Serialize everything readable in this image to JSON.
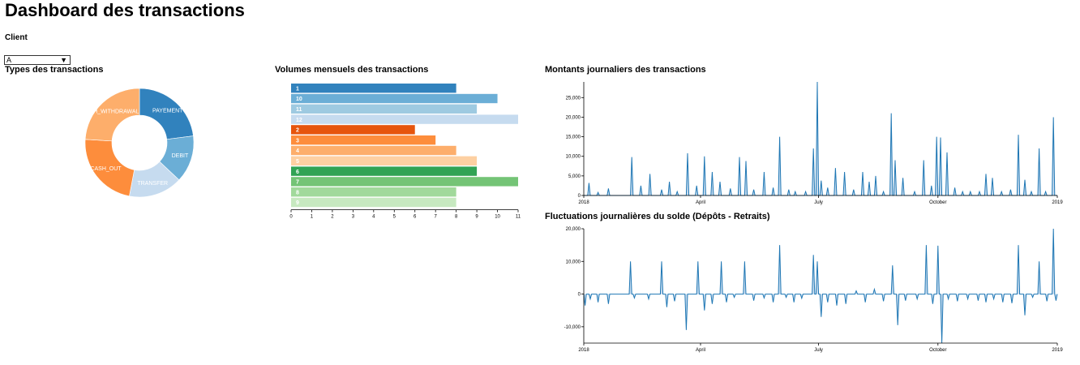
{
  "header": {
    "title": "Dashboard des transactions"
  },
  "client": {
    "label": "Client",
    "selected": "A"
  },
  "panels": {
    "types": "Types des transactions",
    "monthly": "Volumes mensuels des transactions",
    "daily_amounts": "Montants journaliers des transactions",
    "balance": "Fluctuations journalières du solde (Dépôts - Retraits)"
  },
  "colors": {
    "blue_dark": "#3182bd",
    "blue_mid": "#6baed6",
    "blue_light": "#9ecae1",
    "blue_pale": "#c6dbef",
    "orange_dark": "#e6550d",
    "orange_mid": "#fd8d3c",
    "orange_light": "#fdae6b",
    "orange_pale": "#fdd0a2",
    "green_dark": "#31a354",
    "green_mid": "#74c476",
    "green_light": "#a1d99b",
    "green_pale": "#c7e9c0",
    "line": "#1f77b4",
    "area": "#c6dbef"
  },
  "chart_data": [
    {
      "type": "pie",
      "title": "Types des transactions",
      "slices": [
        {
          "label": "PAYEMENT",
          "value": 23,
          "color": "#3182bd"
        },
        {
          "label": "DEBIT",
          "value": 14,
          "color": "#6baed6"
        },
        {
          "label": "TRANSFER",
          "value": 16,
          "color": "#c6dbef"
        },
        {
          "label": "CASH_OUT",
          "value": 23,
          "color": "#fd8d3c"
        },
        {
          "label": "CASH_WITHDRAWAL",
          "value": 24,
          "color": "#fdae6b"
        }
      ]
    },
    {
      "type": "bar",
      "title": "Volumes mensuels des transactions",
      "orientation": "horizontal",
      "categories": [
        "1",
        "10",
        "11",
        "12",
        "2",
        "3",
        "4",
        "5",
        "6",
        "7",
        "8",
        "9"
      ],
      "values": [
        8,
        10,
        9,
        11,
        6,
        7,
        8,
        9,
        9,
        11,
        8,
        8
      ],
      "colors": [
        "#3182bd",
        "#6baed6",
        "#9ecae1",
        "#c6dbef",
        "#e6550d",
        "#fd8d3c",
        "#fdae6b",
        "#fdd0a2",
        "#31a354",
        "#74c476",
        "#a1d99b",
        "#c7e9c0"
      ],
      "xlim": [
        0,
        11
      ],
      "xticks": [
        "0",
        "1",
        "2",
        "3",
        "4",
        "5",
        "6",
        "7",
        "8",
        "9",
        "10",
        "11"
      ]
    },
    {
      "type": "area",
      "title": "Montants journaliers des transactions",
      "x_domain": [
        "2018-01-01",
        "2019-01-01"
      ],
      "xticks": [
        "2018",
        "April",
        "July",
        "October",
        "2019"
      ],
      "ylim": [
        0,
        29000
      ],
      "yticks": [
        "0",
        "5,000",
        "10,000",
        "15,000",
        "20,000",
        "25,000"
      ],
      "points": [
        [
          "2018-01-05",
          3200
        ],
        [
          "2018-01-12",
          800
        ],
        [
          "2018-01-20",
          1800
        ],
        [
          "2018-02-07",
          9800
        ],
        [
          "2018-02-14",
          2500
        ],
        [
          "2018-02-21",
          5500
        ],
        [
          "2018-03-02",
          1500
        ],
        [
          "2018-03-08",
          3500
        ],
        [
          "2018-03-14",
          1000
        ],
        [
          "2018-03-22",
          10800
        ],
        [
          "2018-03-29",
          2500
        ],
        [
          "2018-04-04",
          10000
        ],
        [
          "2018-04-10",
          6000
        ],
        [
          "2018-04-16",
          3500
        ],
        [
          "2018-04-24",
          1800
        ],
        [
          "2018-05-01",
          9800
        ],
        [
          "2018-05-06",
          8800
        ],
        [
          "2018-05-12",
          1500
        ],
        [
          "2018-05-20",
          6000
        ],
        [
          "2018-05-27",
          2000
        ],
        [
          "2018-06-01",
          15000
        ],
        [
          "2018-06-08",
          1500
        ],
        [
          "2018-06-13",
          1000
        ],
        [
          "2018-06-21",
          1000
        ],
        [
          "2018-06-27",
          12000
        ],
        [
          "2018-06-30",
          29000
        ],
        [
          "2018-07-03",
          3800
        ],
        [
          "2018-07-08",
          2000
        ],
        [
          "2018-07-14",
          7000
        ],
        [
          "2018-07-21",
          6000
        ],
        [
          "2018-07-28",
          1500
        ],
        [
          "2018-08-04",
          6000
        ],
        [
          "2018-08-09",
          3500
        ],
        [
          "2018-08-14",
          5000
        ],
        [
          "2018-08-20",
          1000
        ],
        [
          "2018-08-26",
          21000
        ],
        [
          "2018-08-29",
          9000
        ],
        [
          "2018-09-04",
          4500
        ],
        [
          "2018-09-13",
          1000
        ],
        [
          "2018-09-20",
          9000
        ],
        [
          "2018-09-26",
          2500
        ],
        [
          "2018-09-30",
          15000
        ],
        [
          "2018-10-03",
          14800
        ],
        [
          "2018-10-08",
          11000
        ],
        [
          "2018-10-14",
          2000
        ],
        [
          "2018-10-20",
          1000
        ],
        [
          "2018-10-26",
          1000
        ],
        [
          "2018-11-02",
          1000
        ],
        [
          "2018-11-07",
          5500
        ],
        [
          "2018-11-12",
          4500
        ],
        [
          "2018-11-19",
          1000
        ],
        [
          "2018-11-26",
          1500
        ],
        [
          "2018-12-02",
          15500
        ],
        [
          "2018-12-07",
          4000
        ],
        [
          "2018-12-12",
          1000
        ],
        [
          "2018-12-18",
          12000
        ],
        [
          "2018-12-23",
          1000
        ],
        [
          "2018-12-29",
          20000
        ]
      ]
    },
    {
      "type": "area",
      "title": "Fluctuations journalières du solde (Dépôts - Retraits)",
      "x_domain": [
        "2018-01-01",
        "2019-01-01"
      ],
      "xticks": [
        "2018",
        "April",
        "July",
        "October",
        "2019"
      ],
      "ylim": [
        -15000,
        20000
      ],
      "yticks": [
        "-10,000",
        "0",
        "10,000",
        "20,000"
      ],
      "points": [
        [
          "2018-01-02",
          -3500
        ],
        [
          "2018-01-06",
          -1500
        ],
        [
          "2018-01-12",
          -2500
        ],
        [
          "2018-01-20",
          -3000
        ],
        [
          "2018-02-06",
          10000
        ],
        [
          "2018-02-09",
          -1200
        ],
        [
          "2018-02-20",
          -1500
        ],
        [
          "2018-03-02",
          10000
        ],
        [
          "2018-03-06",
          -4000
        ],
        [
          "2018-03-12",
          -2200
        ],
        [
          "2018-03-21",
          -11000
        ],
        [
          "2018-03-30",
          10000
        ],
        [
          "2018-04-04",
          -5000
        ],
        [
          "2018-04-10",
          -3000
        ],
        [
          "2018-04-17",
          10000
        ],
        [
          "2018-04-21",
          -2500
        ],
        [
          "2018-04-27",
          -1000
        ],
        [
          "2018-05-05",
          10000
        ],
        [
          "2018-05-12",
          -2000
        ],
        [
          "2018-05-20",
          -1200
        ],
        [
          "2018-05-27",
          -2500
        ],
        [
          "2018-06-01",
          15000
        ],
        [
          "2018-06-06",
          -1000
        ],
        [
          "2018-06-12",
          -2500
        ],
        [
          "2018-06-18",
          -1300
        ],
        [
          "2018-06-27",
          12000
        ],
        [
          "2018-06-30",
          10000
        ],
        [
          "2018-07-03",
          -7000
        ],
        [
          "2018-07-08",
          -2500
        ],
        [
          "2018-07-15",
          -3500
        ],
        [
          "2018-07-22",
          -3000
        ],
        [
          "2018-07-30",
          1000
        ],
        [
          "2018-08-06",
          -2500
        ],
        [
          "2018-08-13",
          1500
        ],
        [
          "2018-08-20",
          -2200
        ],
        [
          "2018-08-27",
          8800
        ],
        [
          "2018-08-31",
          -9500
        ],
        [
          "2018-09-06",
          -2000
        ],
        [
          "2018-09-15",
          -1500
        ],
        [
          "2018-09-22",
          15000
        ],
        [
          "2018-09-27",
          -3000
        ],
        [
          "2018-10-01",
          14800
        ],
        [
          "2018-10-04",
          -15000
        ],
        [
          "2018-10-09",
          -1500
        ],
        [
          "2018-10-16",
          -2200
        ],
        [
          "2018-10-24",
          -1500
        ],
        [
          "2018-11-01",
          -2000
        ],
        [
          "2018-11-07",
          -2500
        ],
        [
          "2018-11-13",
          -1500
        ],
        [
          "2018-11-20",
          -2500
        ],
        [
          "2018-11-27",
          -2800
        ],
        [
          "2018-12-02",
          15000
        ],
        [
          "2018-12-07",
          -6500
        ],
        [
          "2018-12-13",
          -1000
        ],
        [
          "2018-12-18",
          10000
        ],
        [
          "2018-12-24",
          -2200
        ],
        [
          "2018-12-29",
          20000
        ],
        [
          "2018-12-31",
          -2000
        ]
      ]
    }
  ]
}
